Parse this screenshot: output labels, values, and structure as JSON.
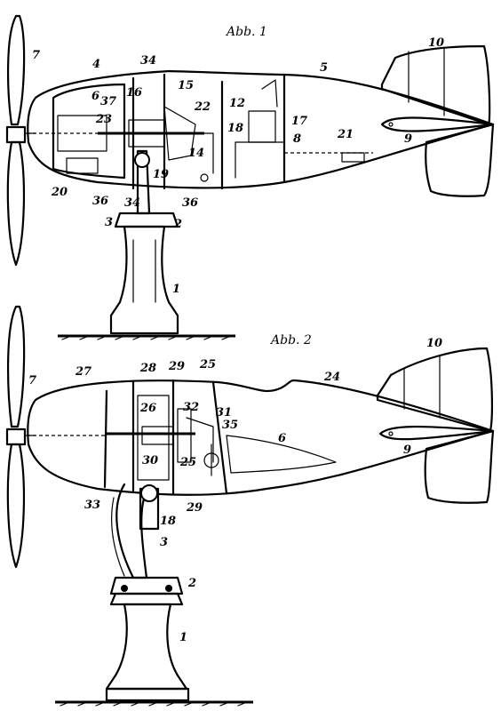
{
  "figures": [
    {
      "title": "Abb. 1",
      "labels": [
        "7",
        "4",
        "34",
        "5",
        "10",
        "6",
        "37",
        "16",
        "15",
        "22",
        "12",
        "23",
        "17",
        "18",
        "8",
        "21",
        "9",
        "14",
        "20",
        "36",
        "34",
        "19",
        "36",
        "3",
        "2",
        "1"
      ]
    },
    {
      "title": "Abb. 2",
      "labels": [
        "7",
        "27",
        "28",
        "29",
        "25",
        "24",
        "10",
        "26",
        "32",
        "31",
        "35",
        "6",
        "30",
        "25",
        "9",
        "33",
        "18",
        "29",
        "3",
        "2",
        "1"
      ]
    }
  ]
}
